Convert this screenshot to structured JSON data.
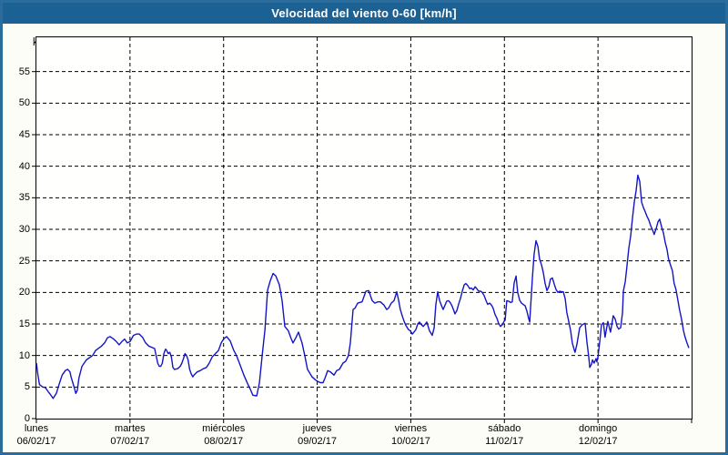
{
  "window": {
    "title": "Velocidad del viento 0-60 [km/h]"
  },
  "colors": {
    "titlebar_bg": "#1c6193",
    "frame_border": "#2a6d9c",
    "content_bg": "#fdfdf7",
    "plot_bg": "#fffffd",
    "line": "#1414c8",
    "grid": "#000000",
    "axis_text": "#000000",
    "title_text": "#ffffff"
  },
  "chart_data": {
    "type": "line",
    "title": "Velocidad del viento 0-60 [km/h]",
    "ylabel": "km/h",
    "ylim": [
      0,
      60
    ],
    "yticks": [
      0,
      5,
      10,
      15,
      20,
      25,
      30,
      35,
      40,
      45,
      50,
      55
    ],
    "x_unit": "hours since lunes 06/02/17 00:00",
    "xlim": [
      0,
      168
    ],
    "x_day_ticks": [
      0,
      24,
      48,
      72,
      96,
      120,
      144,
      168
    ],
    "grid": "dashed",
    "legend_position": "none",
    "day_labels": [
      {
        "name": "lunes",
        "date": "06/02/17"
      },
      {
        "name": "martes",
        "date": "07/02/17"
      },
      {
        "name": "miércoles",
        "date": "08/02/17"
      },
      {
        "name": "jueves",
        "date": "09/02/17"
      },
      {
        "name": "viernes",
        "date": "10/02/17"
      },
      {
        "name": "sábado",
        "date": "11/02/17"
      },
      {
        "name": "domingo",
        "date": "12/02/17"
      }
    ],
    "series": [
      {
        "name": "Velocidad del viento",
        "color": "#1414c8",
        "points": [
          [
            0,
            8.8
          ],
          [
            0.4,
            6.9
          ],
          [
            0.8,
            5.4
          ],
          [
            1.6,
            5.0
          ],
          [
            2.3,
            4.9
          ],
          [
            3.1,
            4.2
          ],
          [
            3.5,
            3.9
          ],
          [
            4.3,
            3.2
          ],
          [
            5.1,
            4.0
          ],
          [
            5.8,
            5.4
          ],
          [
            6.6,
            6.9
          ],
          [
            7.4,
            7.6
          ],
          [
            8.0,
            7.8
          ],
          [
            8.6,
            7.4
          ],
          [
            8.9,
            6.6
          ],
          [
            9.7,
            4.9
          ],
          [
            10.1,
            4.0
          ],
          [
            10.5,
            4.5
          ],
          [
            10.9,
            6.4
          ],
          [
            11.7,
            8.3
          ],
          [
            12.8,
            9.3
          ],
          [
            14.4,
            10.0
          ],
          [
            15.2,
            10.8
          ],
          [
            16.7,
            11.5
          ],
          [
            17.5,
            12.0
          ],
          [
            18.2,
            12.8
          ],
          [
            18.9,
            13.0
          ],
          [
            19.8,
            12.6
          ],
          [
            20.5,
            12.2
          ],
          [
            21.2,
            11.7
          ],
          [
            21.9,
            12.2
          ],
          [
            22.6,
            12.6
          ],
          [
            23.3,
            12.0
          ],
          [
            24.0,
            12.2
          ],
          [
            24.9,
            13.2
          ],
          [
            25.7,
            13.4
          ],
          [
            26.4,
            13.4
          ],
          [
            27.2,
            12.9
          ],
          [
            28.0,
            12.0
          ],
          [
            28.8,
            11.5
          ],
          [
            30.3,
            11.1
          ],
          [
            31.1,
            8.8
          ],
          [
            31.5,
            8.3
          ],
          [
            31.9,
            8.3
          ],
          [
            32.3,
            8.8
          ],
          [
            32.7,
            10.3
          ],
          [
            33.1,
            11.0
          ],
          [
            33.4,
            10.8
          ],
          [
            33.8,
            10.3
          ],
          [
            34.2,
            10.5
          ],
          [
            34.6,
            9.8
          ],
          [
            35.0,
            8.1
          ],
          [
            35.4,
            7.8
          ],
          [
            36.2,
            7.9
          ],
          [
            36.9,
            8.3
          ],
          [
            37.3,
            8.8
          ],
          [
            37.7,
            9.5
          ],
          [
            38.1,
            10.3
          ],
          [
            38.5,
            10.0
          ],
          [
            38.9,
            9.3
          ],
          [
            39.3,
            7.8
          ],
          [
            39.7,
            7.1
          ],
          [
            40.1,
            6.6
          ],
          [
            40.4,
            6.9
          ],
          [
            41.2,
            7.4
          ],
          [
            42.0,
            7.6
          ],
          [
            42.8,
            7.9
          ],
          [
            43.6,
            8.1
          ],
          [
            44.3,
            8.8
          ],
          [
            45.1,
            9.8
          ],
          [
            45.9,
            10.3
          ],
          [
            46.7,
            10.8
          ],
          [
            47.4,
            12.0
          ],
          [
            48.1,
            12.7
          ],
          [
            48.8,
            13.0
          ],
          [
            49.7,
            12.3
          ],
          [
            50.6,
            10.8
          ],
          [
            51.3,
            10.0
          ],
          [
            52.3,
            8.4
          ],
          [
            53.2,
            6.9
          ],
          [
            54.1,
            5.6
          ],
          [
            54.8,
            4.7
          ],
          [
            55.5,
            3.7
          ],
          [
            56.5,
            3.6
          ],
          [
            57.2,
            5.7
          ],
          [
            57.9,
            10.0
          ],
          [
            58.6,
            14.0
          ],
          [
            59.3,
            20.4
          ],
          [
            60.0,
            21.9
          ],
          [
            60.7,
            23.0
          ],
          [
            61.4,
            22.6
          ],
          [
            62.3,
            21.2
          ],
          [
            63.0,
            18.7
          ],
          [
            63.7,
            14.6
          ],
          [
            64.6,
            13.9
          ],
          [
            65.3,
            12.7
          ],
          [
            65.8,
            12.0
          ],
          [
            66.5,
            12.8
          ],
          [
            67.2,
            13.7
          ],
          [
            68.1,
            12.0
          ],
          [
            68.8,
            10.0
          ],
          [
            69.5,
            7.8
          ],
          [
            70.7,
            6.6
          ],
          [
            71.6,
            6.1
          ],
          [
            72.1,
            5.9
          ],
          [
            72.8,
            5.7
          ],
          [
            73.5,
            5.7
          ],
          [
            74.0,
            6.4
          ],
          [
            74.7,
            7.6
          ],
          [
            75.4,
            7.4
          ],
          [
            76.3,
            6.9
          ],
          [
            77.0,
            7.6
          ],
          [
            77.7,
            7.8
          ],
          [
            78.6,
            8.8
          ],
          [
            79.3,
            9.1
          ],
          [
            80.0,
            10.0
          ],
          [
            80.5,
            12.0
          ],
          [
            81.2,
            17.3
          ],
          [
            81.7,
            17.5
          ],
          [
            82.4,
            18.3
          ],
          [
            83.5,
            18.5
          ],
          [
            84.5,
            20.2
          ],
          [
            85.2,
            20.3
          ],
          [
            86.1,
            18.7
          ],
          [
            86.8,
            18.3
          ],
          [
            87.5,
            18.5
          ],
          [
            88.2,
            18.5
          ],
          [
            89.1,
            18.0
          ],
          [
            89.8,
            17.3
          ],
          [
            90.3,
            17.5
          ],
          [
            91.0,
            18.3
          ],
          [
            91.7,
            18.7
          ],
          [
            92.4,
            20.1
          ],
          [
            92.9,
            18.7
          ],
          [
            93.3,
            17.3
          ],
          [
            93.8,
            16.3
          ],
          [
            94.3,
            15.4
          ],
          [
            94.7,
            14.8
          ],
          [
            95.4,
            14.1
          ],
          [
            95.9,
            13.9
          ],
          [
            96.4,
            13.4
          ],
          [
            96.8,
            13.7
          ],
          [
            97.3,
            14.1
          ],
          [
            97.8,
            15.0
          ],
          [
            98.2,
            15.3
          ],
          [
            98.7,
            14.9
          ],
          [
            99.2,
            14.6
          ],
          [
            99.6,
            14.9
          ],
          [
            100.1,
            15.3
          ],
          [
            100.8,
            13.9
          ],
          [
            101.5,
            13.2
          ],
          [
            102.0,
            14.4
          ],
          [
            102.4,
            18.0
          ],
          [
            102.9,
            20.1
          ],
          [
            103.4,
            18.7
          ],
          [
            103.8,
            18.0
          ],
          [
            104.3,
            17.3
          ],
          [
            104.8,
            18.0
          ],
          [
            105.2,
            18.6
          ],
          [
            105.7,
            18.7
          ],
          [
            106.2,
            18.3
          ],
          [
            106.6,
            17.8
          ],
          [
            107.1,
            17.0
          ],
          [
            107.3,
            16.6
          ],
          [
            107.8,
            17.1
          ],
          [
            108.3,
            18.2
          ],
          [
            108.7,
            19.0
          ],
          [
            109.2,
            20.2
          ],
          [
            109.7,
            21.2
          ],
          [
            110.1,
            21.4
          ],
          [
            110.6,
            21.1
          ],
          [
            111.1,
            20.6
          ],
          [
            111.5,
            20.7
          ],
          [
            112.0,
            20.4
          ],
          [
            112.5,
            20.9
          ],
          [
            112.9,
            20.6
          ],
          [
            113.4,
            20.2
          ],
          [
            113.9,
            20.2
          ],
          [
            114.3,
            20.0
          ],
          [
            114.8,
            19.5
          ],
          [
            115.3,
            18.7
          ],
          [
            115.7,
            18.1
          ],
          [
            116.2,
            18.3
          ],
          [
            116.7,
            18.0
          ],
          [
            117.1,
            17.5
          ],
          [
            117.6,
            16.5
          ],
          [
            118.1,
            15.9
          ],
          [
            118.5,
            15.1
          ],
          [
            119.0,
            14.6
          ],
          [
            119.5,
            14.9
          ],
          [
            119.9,
            15.4
          ],
          [
            120.2,
            15.6
          ],
          [
            120.6,
            18.7
          ],
          [
            121.1,
            18.6
          ],
          [
            121.6,
            18.4
          ],
          [
            122.0,
            18.5
          ],
          [
            122.5,
            21.5
          ],
          [
            123.0,
            22.6
          ],
          [
            123.4,
            20.0
          ],
          [
            123.9,
            18.8
          ],
          [
            124.4,
            18.3
          ],
          [
            124.8,
            18.1
          ],
          [
            125.3,
            17.9
          ],
          [
            125.8,
            17.0
          ],
          [
            126.2,
            15.9
          ],
          [
            126.5,
            15.3
          ],
          [
            126.7,
            17.5
          ],
          [
            127.2,
            22.4
          ],
          [
            127.6,
            26.0
          ],
          [
            128.1,
            28.2
          ],
          [
            128.6,
            27.3
          ],
          [
            129.0,
            25.3
          ],
          [
            129.5,
            24.4
          ],
          [
            130.0,
            23.1
          ],
          [
            130.4,
            21.5
          ],
          [
            130.9,
            20.3
          ],
          [
            131.4,
            20.9
          ],
          [
            131.8,
            22.1
          ],
          [
            132.3,
            22.3
          ],
          [
            132.8,
            21.3
          ],
          [
            133.2,
            20.5
          ],
          [
            133.7,
            20.0
          ],
          [
            134.2,
            20.2
          ],
          [
            134.6,
            20.1
          ],
          [
            135.1,
            20.1
          ],
          [
            135.6,
            19.0
          ],
          [
            136.0,
            16.8
          ],
          [
            136.5,
            15.4
          ],
          [
            137.0,
            13.9
          ],
          [
            137.4,
            12.0
          ],
          [
            137.9,
            10.9
          ],
          [
            138.1,
            10.5
          ],
          [
            138.6,
            11.8
          ],
          [
            139.3,
            14.4
          ],
          [
            140.0,
            14.9
          ],
          [
            140.7,
            15.1
          ],
          [
            141.2,
            12.0
          ],
          [
            141.6,
            9.9
          ],
          [
            141.9,
            8.1
          ],
          [
            142.3,
            8.6
          ],
          [
            142.6,
            9.3
          ],
          [
            143.0,
            8.8
          ],
          [
            143.5,
            9.5
          ],
          [
            143.7,
            9.0
          ],
          [
            144.0,
            9.8
          ],
          [
            144.4,
            12.0
          ],
          [
            144.9,
            14.9
          ],
          [
            145.4,
            15.2
          ],
          [
            145.8,
            12.9
          ],
          [
            146.5,
            15.4
          ],
          [
            147.2,
            13.7
          ],
          [
            147.9,
            16.3
          ],
          [
            148.4,
            15.8
          ],
          [
            148.9,
            14.6
          ],
          [
            149.3,
            14.2
          ],
          [
            149.8,
            14.4
          ],
          [
            150.3,
            16.8
          ],
          [
            150.5,
            20.2
          ],
          [
            151.0,
            21.7
          ],
          [
            151.4,
            24.1
          ],
          [
            151.9,
            27.0
          ],
          [
            152.4,
            29.0
          ],
          [
            152.8,
            31.6
          ],
          [
            153.3,
            34.3
          ],
          [
            153.8,
            36.2
          ],
          [
            154.2,
            38.6
          ],
          [
            154.7,
            37.6
          ],
          [
            155.2,
            34.3
          ],
          [
            155.6,
            33.5
          ],
          [
            156.1,
            32.8
          ],
          [
            156.6,
            32.0
          ],
          [
            157.0,
            31.5
          ],
          [
            157.5,
            30.6
          ],
          [
            158.0,
            29.9
          ],
          [
            158.4,
            29.2
          ],
          [
            158.9,
            30.1
          ],
          [
            159.4,
            31.2
          ],
          [
            159.8,
            31.6
          ],
          [
            160.3,
            30.4
          ],
          [
            160.8,
            29.4
          ],
          [
            161.2,
            28.0
          ],
          [
            161.7,
            26.8
          ],
          [
            162.1,
            25.3
          ],
          [
            162.6,
            24.3
          ],
          [
            163.1,
            23.4
          ],
          [
            163.5,
            21.5
          ],
          [
            164.0,
            20.4
          ],
          [
            164.5,
            18.7
          ],
          [
            164.9,
            17.3
          ],
          [
            165.4,
            15.8
          ],
          [
            165.9,
            14.0
          ],
          [
            166.3,
            13.0
          ],
          [
            166.8,
            12.0
          ],
          [
            167.3,
            11.2
          ]
        ]
      }
    ]
  }
}
